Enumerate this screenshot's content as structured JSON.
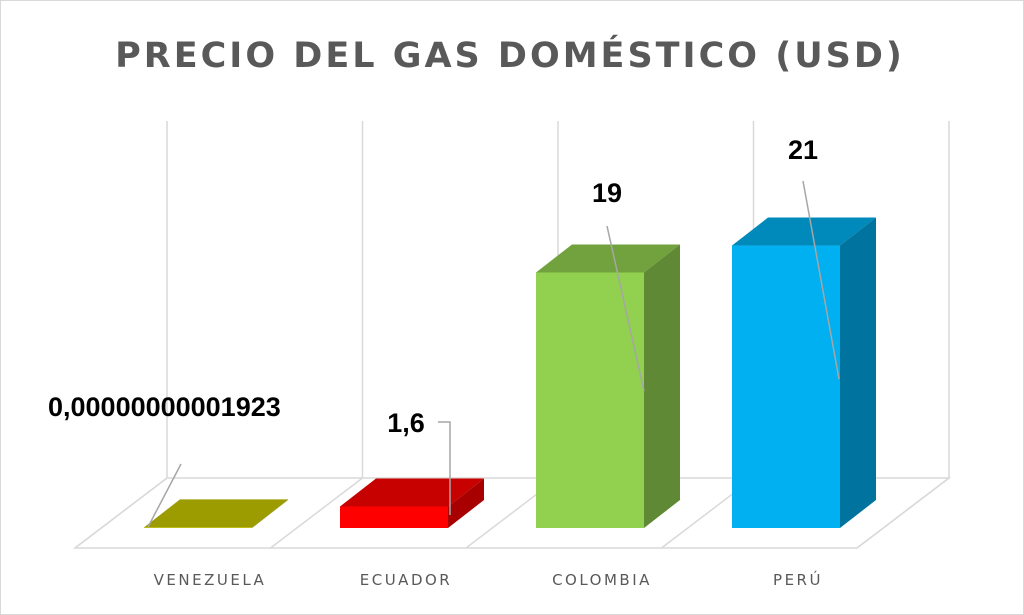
{
  "chart_data": {
    "type": "bar",
    "title": "PRECIO DEL GAS DOMÉSTICO (USD)",
    "categories": [
      "VENEZUELA",
      "ECUADOR",
      "COLOMBIA",
      "PERÚ"
    ],
    "values": [
      1.923e-11,
      1.6,
      19,
      21
    ],
    "data_labels": [
      "0,00000000001923",
      "1,6",
      "19",
      "21"
    ],
    "colors": [
      "#c8c800",
      "#ff0000",
      "#92d050",
      "#00b0f0"
    ],
    "style": "3d-column",
    "grid": true,
    "legend": "none"
  }
}
